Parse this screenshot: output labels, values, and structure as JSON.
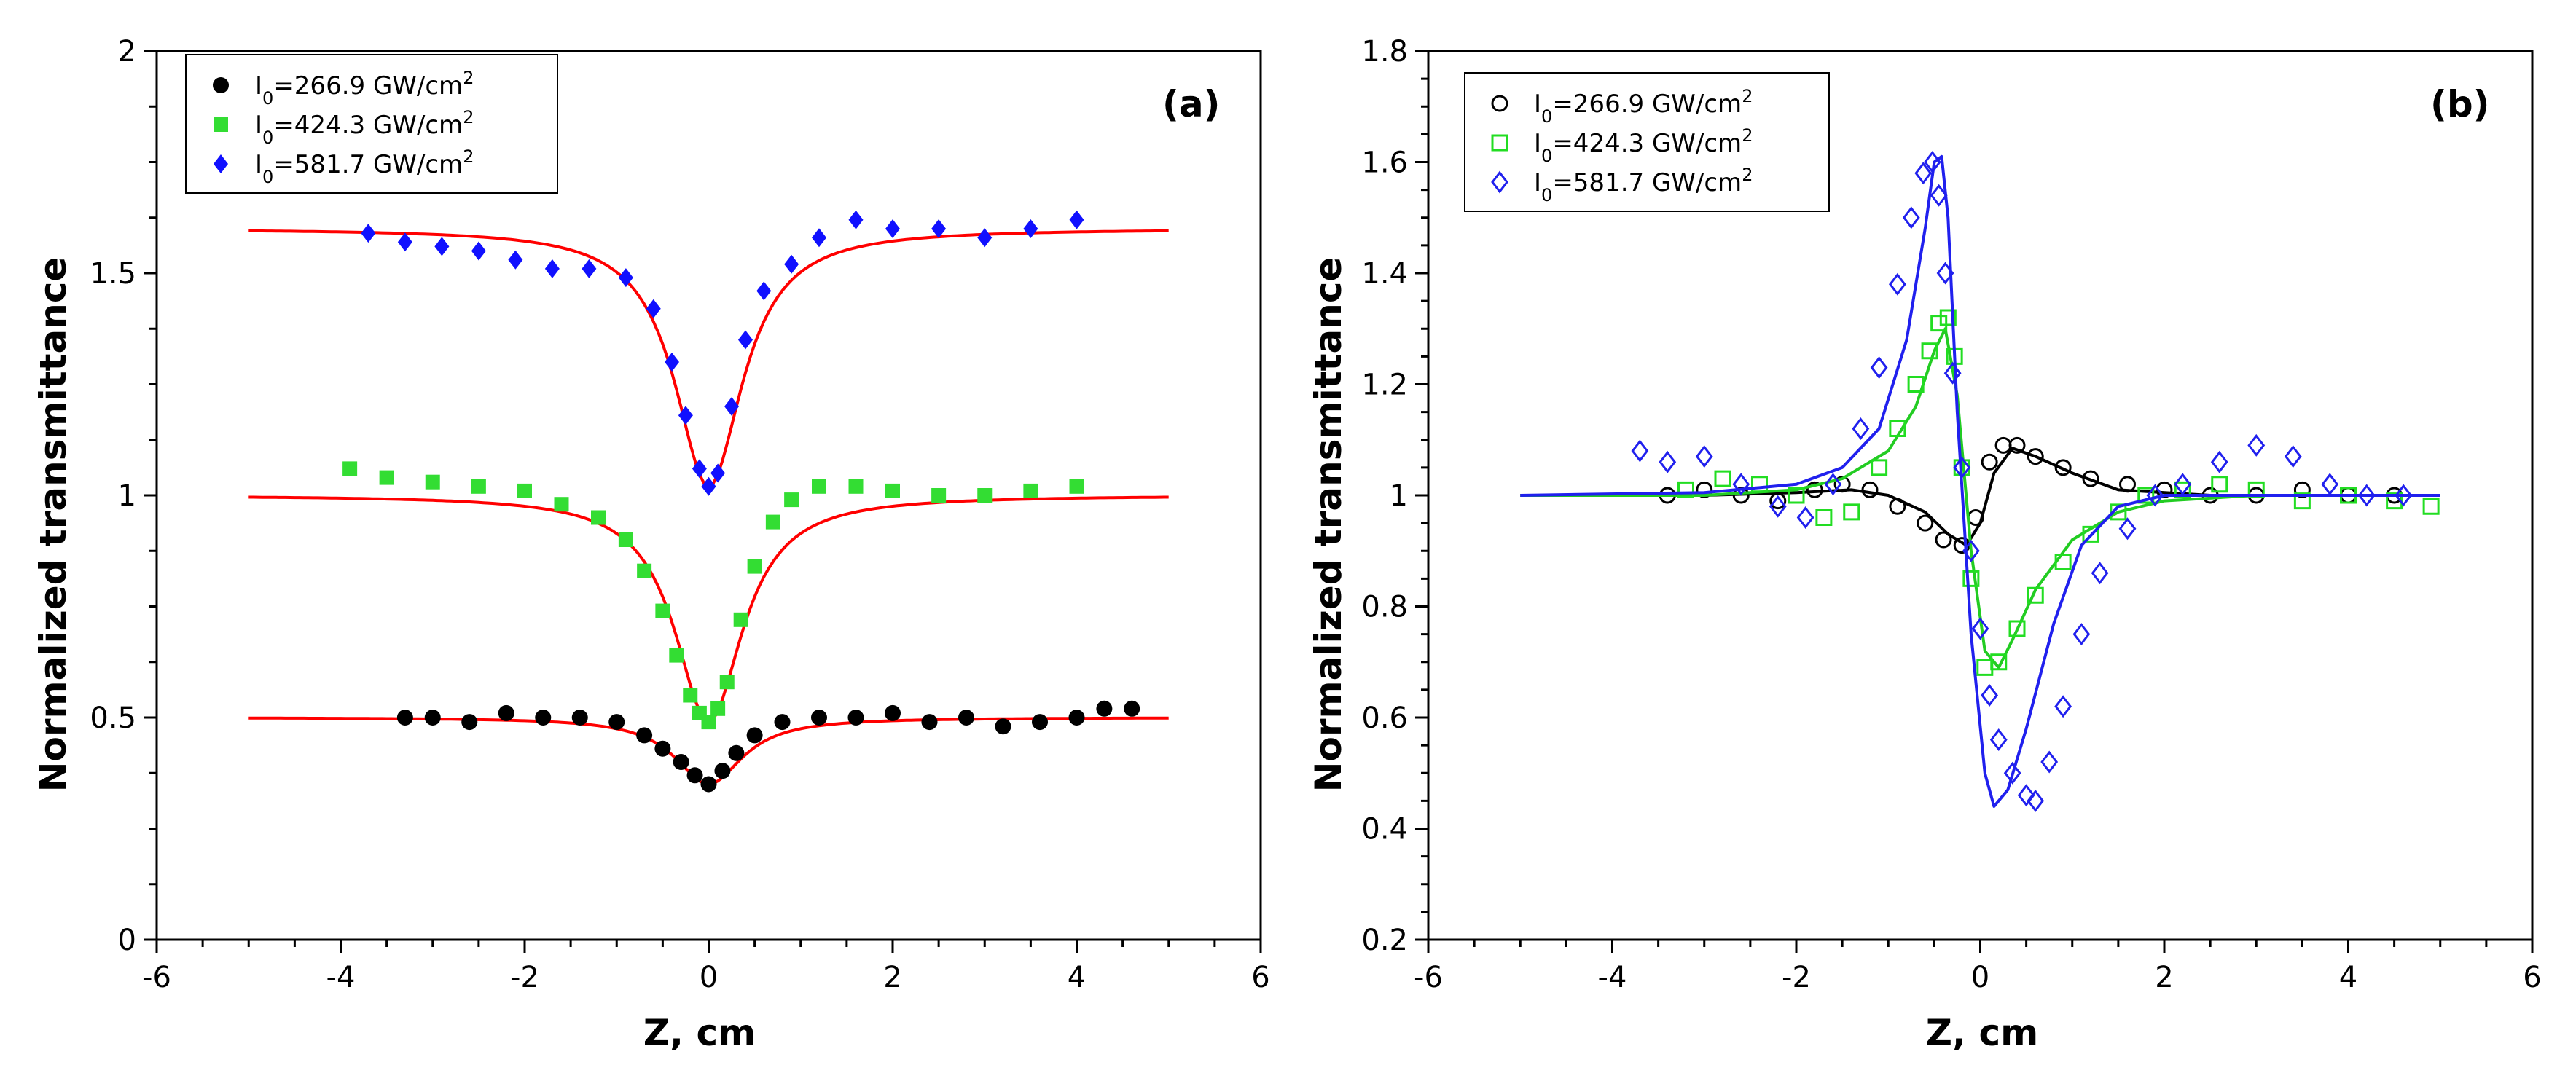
{
  "chart_data": [
    {
      "type": "scatter",
      "panel_label": "(a)",
      "xlabel": "Z, cm",
      "ylabel": "Normalized transmittance",
      "xlim": [
        -6,
        6
      ],
      "ylim": [
        0,
        2
      ],
      "xticks": [
        "-6",
        "-4",
        "-2",
        "0",
        "2",
        "4",
        "6"
      ],
      "yticks": [
        "0",
        "0.5",
        "1",
        "1.5",
        "2"
      ],
      "legend_position": "top-left",
      "grid": false,
      "series": [
        {
          "name": "I0=266.9 GW/cm2",
          "legend": {
            "pre": "I",
            "sub": "0",
            "mid": "=266.9 GW/cm",
            "sup": "2"
          },
          "marker": "filled-circle",
          "color": "#000000",
          "x": [
            -3.3,
            -3.0,
            -2.6,
            -2.2,
            -1.8,
            -1.4,
            -1.0,
            -0.7,
            -0.5,
            -0.3,
            -0.15,
            0.0,
            0.15,
            0.3,
            0.5,
            0.8,
            1.2,
            1.6,
            2.0,
            2.4,
            2.8,
            3.2,
            3.6,
            4.0,
            4.3,
            4.6
          ],
          "y": [
            0.5,
            0.5,
            0.49,
            0.51,
            0.5,
            0.5,
            0.49,
            0.46,
            0.43,
            0.4,
            0.37,
            0.35,
            0.38,
            0.42,
            0.46,
            0.49,
            0.5,
            0.5,
            0.51,
            0.49,
            0.5,
            0.48,
            0.49,
            0.5,
            0.52,
            0.52
          ],
          "fit": {
            "base": 0.5,
            "depth": 0.15,
            "width": 0.45,
            "range": [
              -5,
              5
            ],
            "color": "#ff0000"
          }
        },
        {
          "name": "I0=424.3 GW/cm2",
          "legend": {
            "pre": "I",
            "sub": "0",
            "mid": "=424.3 GW/cm",
            "sup": "2"
          },
          "marker": "filled-square",
          "color": "#33dd33",
          "x": [
            -3.9,
            -3.5,
            -3.0,
            -2.5,
            -2.0,
            -1.6,
            -1.2,
            -0.9,
            -0.7,
            -0.5,
            -0.35,
            -0.2,
            -0.1,
            0.0,
            0.1,
            0.2,
            0.35,
            0.5,
            0.7,
            0.9,
            1.2,
            1.6,
            2.0,
            2.5,
            3.0,
            3.5,
            4.0
          ],
          "y": [
            1.06,
            1.04,
            1.03,
            1.02,
            1.01,
            0.98,
            0.95,
            0.9,
            0.83,
            0.74,
            0.64,
            0.55,
            0.51,
            0.49,
            0.52,
            0.58,
            0.72,
            0.84,
            0.94,
            0.99,
            1.02,
            1.02,
            1.01,
            1.0,
            1.0,
            1.01,
            1.02
          ],
          "fit": {
            "base": 1.0,
            "depth": 0.51,
            "width": 0.45,
            "range": [
              -5,
              5
            ],
            "color": "#ff0000"
          }
        },
        {
          "name": "I0=581.7 GW/cm2",
          "legend": {
            "pre": "I",
            "sub": "0",
            "mid": "=581.7 GW/cm",
            "sup": "2"
          },
          "marker": "filled-diamond",
          "color": "#1010ff",
          "x": [
            -3.7,
            -3.3,
            -2.9,
            -2.5,
            -2.1,
            -1.7,
            -1.3,
            -0.9,
            -0.6,
            -0.4,
            -0.25,
            -0.1,
            0.0,
            0.1,
            0.25,
            0.4,
            0.6,
            0.9,
            1.2,
            1.6,
            2.0,
            2.5,
            3.0,
            3.5,
            4.0
          ],
          "y": [
            1.59,
            1.57,
            1.56,
            1.55,
            1.53,
            1.51,
            1.51,
            1.49,
            1.42,
            1.3,
            1.18,
            1.06,
            1.02,
            1.05,
            1.2,
            1.35,
            1.46,
            1.52,
            1.58,
            1.62,
            1.6,
            1.6,
            1.58,
            1.6,
            1.62
          ],
          "fit": {
            "base": 1.6,
            "depth": 0.58,
            "width": 0.45,
            "range": [
              -5,
              5
            ],
            "color": "#ff0000"
          }
        }
      ]
    },
    {
      "type": "scatter",
      "panel_label": "(b)",
      "xlabel": "Z, cm",
      "ylabel": "Normalized transmittance",
      "xlim": [
        -6,
        6
      ],
      "ylim": [
        0.2,
        1.8
      ],
      "xticks": [
        "-6",
        "-4",
        "-2",
        "0",
        "2",
        "4",
        "6"
      ],
      "yticks": [
        "0.2",
        "0.4",
        "0.6",
        "0.8",
        "1",
        "1.2",
        "1.4",
        "1.6",
        "1.8"
      ],
      "legend_position": "top-left",
      "grid": false,
      "series": [
        {
          "name": "I0=266.9 GW/cm2",
          "legend": {
            "pre": "I",
            "sub": "0",
            "mid": "=266.9 GW/cm",
            "sup": "2"
          },
          "marker": "open-circle",
          "color": "#000000",
          "x": [
            -3.4,
            -3.0,
            -2.6,
            -2.2,
            -1.8,
            -1.5,
            -1.2,
            -0.9,
            -0.6,
            -0.4,
            -0.2,
            -0.05,
            0.1,
            0.25,
            0.4,
            0.6,
            0.9,
            1.2,
            1.6,
            2.0,
            2.5,
            3.0,
            3.5,
            4.0,
            4.5
          ],
          "y": [
            1.0,
            1.01,
            1.0,
            0.99,
            1.01,
            1.02,
            1.01,
            0.98,
            0.95,
            0.92,
            0.91,
            0.96,
            1.06,
            1.09,
            1.09,
            1.07,
            1.05,
            1.03,
            1.02,
            1.01,
            1.0,
            1.0,
            1.01,
            1.0,
            1.0
          ],
          "fit": {
            "x": [
              -5,
              -3,
              -2,
              -1.4,
              -1,
              -0.6,
              -0.35,
              -0.15,
              0.0,
              0.15,
              0.35,
              0.6,
              1,
              1.5,
              2.5,
              5
            ],
            "y": [
              1.0,
              1.0,
              1.005,
              1.01,
              1.0,
              0.97,
              0.93,
              0.91,
              0.95,
              1.04,
              1.085,
              1.07,
              1.04,
              1.01,
              1.0,
              1.0
            ],
            "color": "#000000"
          }
        },
        {
          "name": "I0=424.3 GW/cm2",
          "legend": {
            "pre": "I",
            "sub": "0",
            "mid": "=424.3 GW/cm",
            "sup": "2"
          },
          "marker": "open-square",
          "color": "#22dd22",
          "x": [
            -3.2,
            -2.8,
            -2.4,
            -2.0,
            -1.7,
            -1.4,
            -1.1,
            -0.9,
            -0.7,
            -0.55,
            -0.45,
            -0.35,
            -0.28,
            -0.2,
            -0.1,
            0.05,
            0.2,
            0.4,
            0.6,
            0.9,
            1.2,
            1.5,
            1.8,
            2.2,
            2.6,
            3.0,
            3.5,
            4.0,
            4.5,
            4.9
          ],
          "y": [
            1.01,
            1.03,
            1.02,
            1.0,
            0.96,
            0.97,
            1.05,
            1.12,
            1.2,
            1.26,
            1.31,
            1.32,
            1.25,
            1.05,
            0.85,
            0.69,
            0.7,
            0.76,
            0.82,
            0.88,
            0.93,
            0.97,
            1.0,
            1.01,
            1.02,
            1.01,
            0.99,
            1.0,
            0.99,
            0.98
          ],
          "fit": {
            "x": [
              -5,
              -3,
              -2,
              -1.5,
              -1,
              -0.7,
              -0.5,
              -0.38,
              -0.25,
              -0.1,
              0.05,
              0.2,
              0.35,
              0.6,
              1,
              1.5,
              2,
              3,
              5
            ],
            "y": [
              1.0,
              1.0,
              1.01,
              1.03,
              1.08,
              1.16,
              1.26,
              1.3,
              1.18,
              0.9,
              0.72,
              0.69,
              0.74,
              0.83,
              0.92,
              0.97,
              0.99,
              1.0,
              1.0
            ],
            "color": "#22cc22"
          }
        },
        {
          "name": "I0=581.7 GW/cm2",
          "legend": {
            "pre": "I",
            "sub": "0",
            "mid": "=581.7 GW/cm",
            "sup": "2"
          },
          "marker": "open-diamond",
          "color": "#2020ee",
          "x": [
            -3.7,
            -3.4,
            -3.0,
            -2.6,
            -2.2,
            -1.9,
            -1.6,
            -1.3,
            -1.1,
            -0.9,
            -0.75,
            -0.62,
            -0.52,
            -0.45,
            -0.38,
            -0.3,
            -0.2,
            -0.1,
            0.0,
            0.1,
            0.2,
            0.35,
            0.5,
            0.6,
            0.75,
            0.9,
            1.1,
            1.3,
            1.6,
            1.9,
            2.2,
            2.6,
            3.0,
            3.4,
            3.8,
            4.2,
            4.6
          ],
          "y": [
            1.08,
            1.06,
            1.07,
            1.02,
            0.98,
            0.96,
            1.02,
            1.12,
            1.23,
            1.38,
            1.5,
            1.58,
            1.6,
            1.54,
            1.4,
            1.22,
            1.05,
            0.9,
            0.76,
            0.64,
            0.56,
            0.5,
            0.46,
            0.45,
            0.52,
            0.62,
            0.75,
            0.86,
            0.94,
            1.0,
            1.02,
            1.06,
            1.09,
            1.07,
            1.02,
            1.0,
            1.0
          ],
          "fit": {
            "x": [
              -5,
              -3,
              -2,
              -1.5,
              -1.1,
              -0.8,
              -0.6,
              -0.5,
              -0.42,
              -0.35,
              -0.25,
              -0.1,
              0.05,
              0.15,
              0.3,
              0.5,
              0.8,
              1.1,
              1.5,
              2,
              3,
              5
            ],
            "y": [
              1.0,
              1.005,
              1.02,
              1.05,
              1.12,
              1.28,
              1.48,
              1.6,
              1.61,
              1.5,
              1.15,
              0.75,
              0.5,
              0.44,
              0.47,
              0.58,
              0.77,
              0.91,
              0.98,
              1.0,
              1.0,
              1.0
            ],
            "color": "#2020ee"
          }
        }
      ]
    }
  ]
}
